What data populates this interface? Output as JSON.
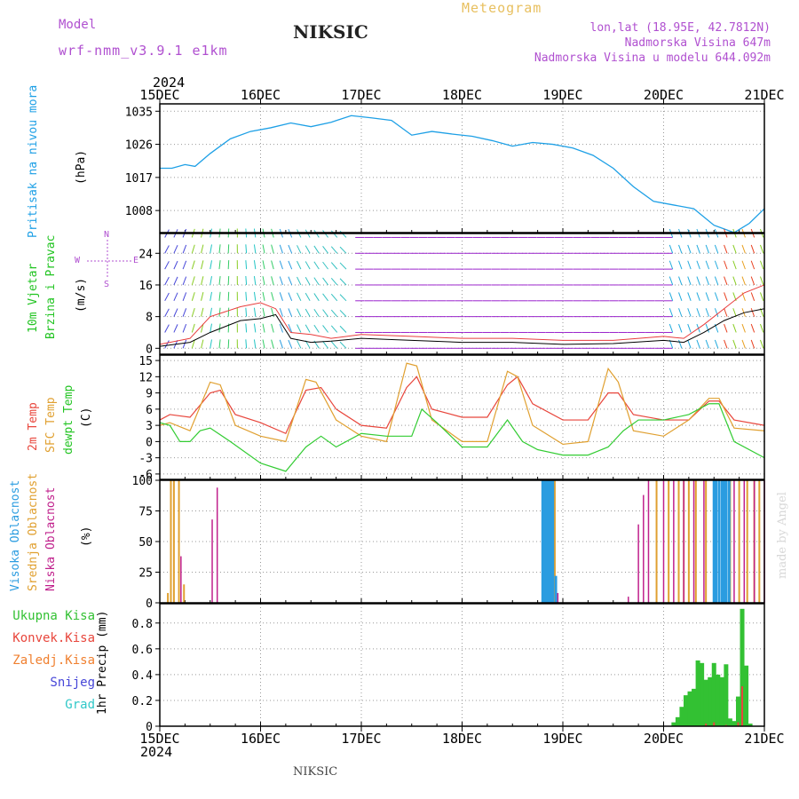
{
  "header": {
    "model_label": "Model",
    "model_name": "wrf-nmm_v3.9.1 e1km",
    "station": "NIKSIC",
    "product": "Meteogram",
    "coords": "lon,lat (18.95E, 42.7812N)",
    "altitude": "Nadmorska Visina 647m",
    "model_altitude": "Nadmorska Visina u modelu 644.092m",
    "footer_station": "NIKSIC",
    "credit": "made by Angel"
  },
  "colors": {
    "pressure": "#1ea0e6",
    "t2m": "#e8463c",
    "tsfc": "#e0a030",
    "dewpt": "#33cc33",
    "cloud_high": "#2a9ce0",
    "cloud_mid": "#e0a030",
    "cloud_low": "#c0208c",
    "precip_total": "#33c133",
    "precip_conv": "#e8463c",
    "precip_freezing": "#f08030",
    "precip_snow": "#4646d8",
    "precip_hail": "#30c8c8",
    "model_text": "#b050d0",
    "product_text": "#e8c060",
    "wind_speed_line": "#000000",
    "wind_gust": "#e83c3c"
  },
  "time_axis": {
    "year": "2024",
    "labels": [
      "15DEC",
      "16DEC",
      "17DEC",
      "18DEC",
      "19DEC",
      "20DEC",
      "21DEC"
    ]
  },
  "panels": {
    "pressure": {
      "title": "Pritisak na nivou mora",
      "unit": "(hPa)"
    },
    "wind": {
      "title_1": "10m Vjetar",
      "title_2": "Brzina i Pravac",
      "unit": "(m/s)",
      "compass_n": "N",
      "compass_s": "S",
      "compass_e": "E",
      "compass_w": "W"
    },
    "temp": {
      "label_t2m": "2m Temp",
      "label_sfc": "SFC Temp",
      "label_dew": "dewpt Temp",
      "unit": "(C)"
    },
    "cloud": {
      "label_high": "Visoka Oblacnost",
      "label_mid": "Srednja Oblacnost",
      "label_low": "Niska Oblacnost",
      "unit": "(%)"
    },
    "precip": {
      "label_total": "Ukupna Kisa",
      "label_conv": "Konvek.Kisa",
      "label_freezing": "Zaledj.Kisa",
      "label_snow": "Snijeg",
      "label_hail": "Grad",
      "unit": "1hr Precip (mm)"
    }
  },
  "chart_data": [
    {
      "type": "line",
      "name": "pressure",
      "x_days": [
        0,
        0.12,
        0.25,
        0.35,
        0.5,
        0.7,
        0.9,
        1.1,
        1.3,
        1.5,
        1.7,
        1.9,
        2.1,
        2.3,
        2.5,
        2.7,
        2.9,
        3.1,
        3.3,
        3.5,
        3.7,
        3.9,
        4.1,
        4.3,
        4.5,
        4.7,
        4.9,
        5.1,
        5.3,
        5.5,
        5.7,
        5.85,
        6.0
      ],
      "y": [
        1019.5,
        1019.5,
        1020.5,
        1020.0,
        1023.5,
        1027.5,
        1029.5,
        1030.5,
        1031.8,
        1030.8,
        1032.0,
        1033.8,
        1033.2,
        1032.5,
        1028.5,
        1029.5,
        1028.8,
        1028.2,
        1027.0,
        1025.5,
        1026.5,
        1026.0,
        1025.0,
        1023.0,
        1019.5,
        1014.5,
        1010.5,
        1009.5,
        1008.5,
        1004.0,
        1002.0,
        1004.5,
        1008.5
      ],
      "ylim": [
        1002,
        1037
      ],
      "yticks": [
        1008,
        1017,
        1026,
        1035
      ]
    },
    {
      "type": "line",
      "name": "wind",
      "ylim": [
        -1.5,
        29
      ],
      "yticks": [
        0,
        8,
        16,
        24
      ],
      "series": [
        {
          "key": "speed",
          "x_days": [
            0,
            0.3,
            0.5,
            0.8,
            1.0,
            1.15,
            1.3,
            1.5,
            1.7,
            2.0,
            2.5,
            3.0,
            3.5,
            4.0,
            4.5,
            5.0,
            5.2,
            5.4,
            5.6,
            5.8,
            6.0
          ],
          "y": [
            0.5,
            1.5,
            4,
            7,
            7.5,
            8.5,
            2.5,
            1.5,
            1.8,
            2.5,
            2.0,
            1.5,
            1.5,
            1.0,
            1.2,
            2.0,
            1.5,
            4,
            7,
            9,
            10
          ]
        },
        {
          "key": "gust",
          "x_days": [
            0,
            0.3,
            0.5,
            0.8,
            1.0,
            1.15,
            1.3,
            1.5,
            1.7,
            2.0,
            2.5,
            3.0,
            3.5,
            4.0,
            4.5,
            5.0,
            5.2,
            5.4,
            5.6,
            5.8,
            6.0
          ],
          "y": [
            1,
            2.5,
            8,
            10.5,
            11.5,
            10,
            4,
            3.5,
            2.5,
            3.5,
            3,
            2.5,
            2.5,
            2,
            2,
            3,
            2.5,
            6,
            10,
            14,
            16
          ]
        }
      ]
    },
    {
      "type": "line",
      "name": "temperature",
      "ylim": [
        -7,
        16
      ],
      "yticks": [
        -6,
        -3,
        0,
        3,
        6,
        9,
        12,
        15
      ],
      "series": [
        {
          "key": "t2m",
          "x_days": [
            0,
            0.1,
            0.3,
            0.5,
            0.6,
            0.75,
            1.0,
            1.25,
            1.45,
            1.6,
            1.75,
            2.0,
            2.25,
            2.45,
            2.55,
            2.7,
            3.0,
            3.25,
            3.45,
            3.55,
            3.7,
            4.0,
            4.25,
            4.45,
            4.55,
            4.7,
            5.0,
            5.25,
            5.45,
            5.55,
            5.7,
            6.0
          ],
          "y": [
            4,
            5,
            4.5,
            9,
            9.5,
            5,
            3.5,
            1.5,
            9.5,
            10,
            6,
            3,
            2.5,
            10,
            12,
            6,
            4.5,
            4.5,
            10.5,
            12,
            7,
            4,
            4,
            9,
            9,
            5,
            4,
            4,
            7.5,
            7.5,
            4,
            3
          ]
        },
        {
          "key": "sfc",
          "x_days": [
            0,
            0.1,
            0.3,
            0.5,
            0.6,
            0.75,
            1.0,
            1.25,
            1.45,
            1.55,
            1.75,
            2.0,
            2.25,
            2.45,
            2.55,
            2.7,
            3.0,
            3.25,
            3.45,
            3.55,
            3.7,
            4.0,
            4.25,
            4.45,
            4.55,
            4.7,
            5.0,
            5.25,
            5.45,
            5.55,
            5.7,
            6.0
          ],
          "y": [
            3,
            3.5,
            2,
            11,
            10.5,
            3,
            1,
            0,
            11.5,
            11,
            4,
            1,
            0,
            14.5,
            14,
            4,
            0,
            0,
            13,
            12,
            3,
            -0.5,
            0,
            13.5,
            11,
            2,
            1,
            4,
            8,
            8,
            2.5,
            2
          ]
        },
        {
          "key": "dew",
          "x_days": [
            0,
            0.1,
            0.2,
            0.3,
            0.4,
            0.5,
            0.7,
            1.0,
            1.25,
            1.45,
            1.6,
            1.75,
            2.0,
            2.25,
            2.5,
            2.6,
            2.75,
            3.0,
            3.25,
            3.45,
            3.6,
            3.75,
            4.0,
            4.25,
            4.45,
            4.6,
            4.75,
            5.0,
            5.25,
            5.45,
            5.55,
            5.7,
            6.0
          ],
          "y": [
            3.5,
            3,
            0,
            0,
            2,
            2.5,
            0,
            -4,
            -5.5,
            -1,
            1,
            -1,
            1.5,
            1,
            1,
            6,
            3.5,
            -1,
            -1,
            4,
            0,
            -1.5,
            -2.5,
            -2.5,
            -1,
            2,
            4,
            4,
            5,
            7,
            7,
            0,
            -3
          ]
        }
      ]
    },
    {
      "type": "bar",
      "name": "cloud",
      "ylim": [
        0,
        100
      ],
      "yticks": [
        0,
        25,
        50,
        75,
        100
      ],
      "high": {
        "x_days": [
          3.8,
          3.82,
          3.84,
          3.86,
          3.88,
          3.9,
          3.93,
          5.5,
          5.52,
          5.55,
          5.58,
          5.6,
          5.62,
          5.65
        ],
        "values": [
          100,
          100,
          100,
          100,
          100,
          100,
          22,
          100,
          100,
          100,
          100,
          100,
          100,
          100
        ]
      },
      "mid": {
        "x_days": [
          0.08,
          0.11,
          0.14,
          0.19,
          0.24,
          3.8,
          3.84,
          3.88,
          3.92,
          4.93,
          5.05,
          5.15,
          5.2,
          5.25,
          5.32,
          5.42,
          5.5,
          5.58,
          5.66,
          5.75,
          5.83,
          5.9,
          5.95
        ],
        "values": [
          8,
          100,
          100,
          100,
          15,
          100,
          100,
          100,
          100,
          100,
          100,
          100,
          100,
          100,
          100,
          100,
          100,
          100,
          100,
          100,
          100,
          100,
          100
        ]
      },
      "low": {
        "x_days": [
          0.21,
          0.52,
          0.57,
          3.95,
          4.65,
          4.75,
          4.8,
          4.85,
          5.0,
          5.1,
          5.2,
          5.3,
          5.4,
          5.5,
          5.6,
          5.7,
          5.8,
          5.9,
          6.0
        ],
        "values": [
          38,
          68,
          94,
          8,
          5,
          64,
          88,
          100,
          100,
          100,
          100,
          100,
          100,
          100,
          100,
          100,
          100,
          100,
          100
        ]
      }
    },
    {
      "type": "bar",
      "name": "precipitation",
      "ylim": [
        0,
        0.95
      ],
      "yticks": [
        0,
        0.2,
        0.4,
        0.6,
        0.8
      ],
      "total": {
        "x_days": [
          5.1,
          5.14,
          5.18,
          5.22,
          5.26,
          5.3,
          5.34,
          5.38,
          5.42,
          5.46,
          5.5,
          5.54,
          5.58,
          5.62,
          5.66,
          5.7,
          5.74,
          5.78,
          5.82,
          5.86
        ],
        "values": [
          0.03,
          0.07,
          0.15,
          0.24,
          0.27,
          0.29,
          0.51,
          0.49,
          0.36,
          0.38,
          0.49,
          0.4,
          0.38,
          0.48,
          0.06,
          0.04,
          0.23,
          0.91,
          0.47,
          0.02
        ]
      },
      "convective": {
        "x_days": [
          5.42,
          5.5,
          5.62,
          5.74,
          5.78
        ],
        "values": [
          0.02,
          0.03,
          0.01,
          0.03,
          0.31
        ]
      }
    }
  ]
}
